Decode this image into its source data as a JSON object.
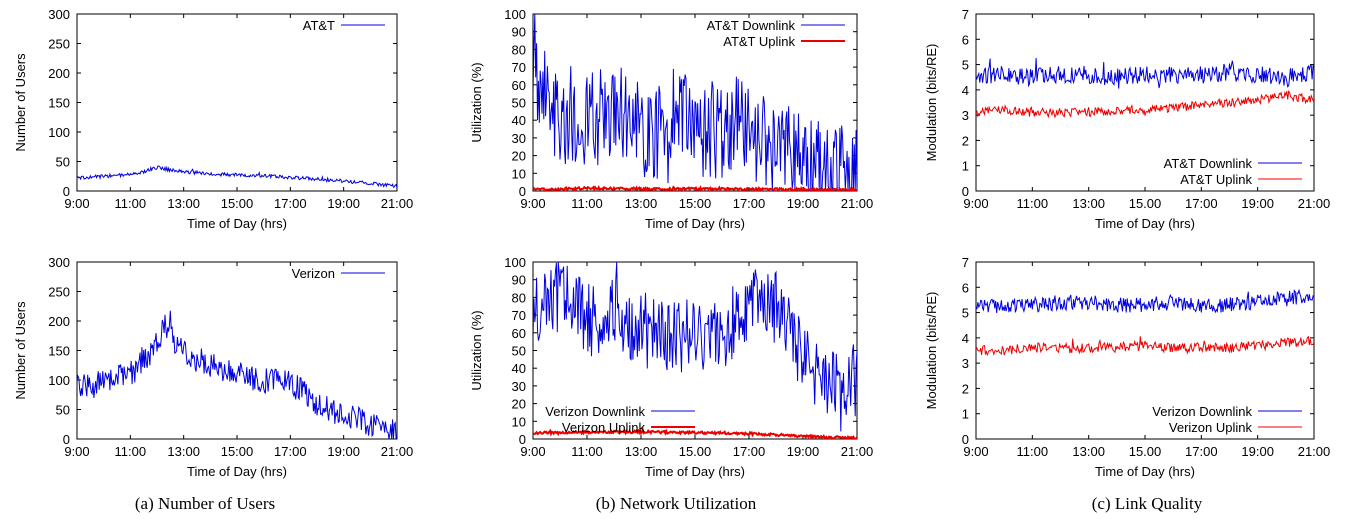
{
  "figure": {
    "captions": [
      "(a) Number of Users",
      "(b) Network Utilization",
      "(c) Link Quality"
    ]
  },
  "colors": {
    "blue": "#0000dd",
    "red": "#ee0000"
  },
  "chart_data": [
    {
      "id": "att_users",
      "type": "line",
      "xlabel": "Time of Day (hrs)",
      "ylabel": "Number of Users",
      "xlim": [
        9,
        21
      ],
      "ylim": [
        0,
        300
      ],
      "xticks": [
        "9:00",
        "11:00",
        "13:00",
        "15:00",
        "17:00",
        "19:00",
        "21:00"
      ],
      "yticks": [
        0,
        50,
        100,
        150,
        200,
        250,
        300
      ],
      "legend_position": "top-right",
      "series": [
        {
          "name": "AT&T",
          "color": "blue",
          "x": [
            9,
            10,
            11,
            11.5,
            12,
            12.5,
            13,
            14,
            15,
            16,
            17,
            18,
            19,
            20,
            21
          ],
          "y": [
            22,
            25,
            28,
            33,
            40,
            36,
            33,
            29,
            27,
            26,
            23,
            20,
            17,
            13,
            8
          ]
        }
      ]
    },
    {
      "id": "att_util",
      "type": "line",
      "xlabel": "Time of Day (hrs)",
      "ylabel": "Utilization (%)",
      "xlim": [
        9,
        21
      ],
      "ylim": [
        0,
        100
      ],
      "xticks": [
        "9:00",
        "11:00",
        "13:00",
        "15:00",
        "17:00",
        "19:00",
        "21:00"
      ],
      "yticks": [
        0,
        10,
        20,
        30,
        40,
        50,
        60,
        70,
        80,
        90,
        100
      ],
      "legend_position": "top-right",
      "series": [
        {
          "name": "AT&T Downlink",
          "color": "blue",
          "width": 1,
          "x": [
            9,
            9.3,
            9.5,
            9.8,
            10,
            10.5,
            11,
            11.5,
            12,
            12.5,
            13,
            13.5,
            14,
            14.5,
            15,
            15.5,
            16,
            16.5,
            17,
            17.5,
            18,
            18.5,
            19,
            19.5,
            20,
            20.5,
            21
          ],
          "y": [
            80,
            55,
            65,
            45,
            40,
            45,
            38,
            42,
            45,
            40,
            36,
            33,
            30,
            45,
            30,
            35,
            32,
            38,
            30,
            28,
            25,
            22,
            18,
            15,
            12,
            10,
            8
          ]
        },
        {
          "name": "AT&T Uplink",
          "color": "red",
          "width": 2,
          "x": [
            9,
            10,
            11,
            12,
            13,
            14,
            15,
            16,
            17,
            18,
            19,
            20,
            21
          ],
          "y": [
            1,
            1.2,
            1.5,
            1.3,
            1.2,
            1.1,
            1.2,
            1.1,
            1,
            0.9,
            0.8,
            0.6,
            0.5
          ]
        }
      ]
    },
    {
      "id": "att_mod",
      "type": "line",
      "xlabel": "Time of Day (hrs)",
      "ylabel": "Modulation (bits/RE)",
      "xlim": [
        9,
        21
      ],
      "ylim": [
        0,
        7
      ],
      "xticks": [
        "9:00",
        "11:00",
        "13:00",
        "15.00",
        "17:00",
        "19:00",
        "21:00"
      ],
      "yticks": [
        0,
        1,
        2,
        3,
        4,
        5,
        6,
        7
      ],
      "legend_position": "bottom-right",
      "series": [
        {
          "name": "AT&T Downlink",
          "color": "blue",
          "x": [
            9,
            10,
            11,
            12,
            13,
            14,
            15,
            16,
            17,
            18,
            19,
            20,
            21
          ],
          "y": [
            4.6,
            4.6,
            4.5,
            4.6,
            4.6,
            4.5,
            4.6,
            4.6,
            4.6,
            4.7,
            4.6,
            4.5,
            4.7
          ]
        },
        {
          "name": "AT&T Uplink",
          "color": "red",
          "x": [
            9,
            10,
            11,
            12,
            13,
            14,
            15,
            16,
            17,
            18,
            19,
            20,
            21
          ],
          "y": [
            3.1,
            3.2,
            3.1,
            3.1,
            3.1,
            3.2,
            3.2,
            3.3,
            3.4,
            3.5,
            3.6,
            3.8,
            3.6
          ]
        }
      ]
    },
    {
      "id": "vz_users",
      "type": "line",
      "xlabel": "Time of Day (hrs)",
      "ylabel": "Number of Users",
      "xlim": [
        9,
        21
      ],
      "ylim": [
        0,
        300
      ],
      "xticks": [
        "9:00",
        "11:00",
        "13:00",
        "15:00",
        "17:00",
        "19:00",
        "21:00"
      ],
      "yticks": [
        0,
        50,
        100,
        150,
        200,
        250,
        300
      ],
      "legend_position": "top-right",
      "series": [
        {
          "name": "Verizon",
          "color": "blue",
          "x": [
            9,
            10,
            11,
            11.5,
            12,
            12.3,
            12.5,
            13,
            14,
            15,
            16,
            17,
            17.5,
            18,
            19,
            20,
            21
          ],
          "y": [
            85,
            95,
            110,
            130,
            160,
            200,
            175,
            145,
            125,
            110,
            100,
            95,
            80,
            60,
            40,
            25,
            12
          ]
        }
      ]
    },
    {
      "id": "vz_util",
      "type": "line",
      "xlabel": "Time of Day (hrs)",
      "ylabel": "Utilization (%)",
      "xlim": [
        9,
        21
      ],
      "ylim": [
        0,
        100
      ],
      "xticks": [
        "9:00",
        "11:00",
        "13:00",
        "15.00",
        "17:00",
        "19:00",
        "21:00"
      ],
      "yticks": [
        0,
        10,
        20,
        30,
        40,
        50,
        60,
        70,
        80,
        90,
        100
      ],
      "legend_position": "bottom-left",
      "series": [
        {
          "name": "Verizon Downlink",
          "color": "blue",
          "width": 1,
          "x": [
            9,
            9.5,
            10,
            10.5,
            11,
            11.5,
            12,
            12.5,
            13,
            13.5,
            14,
            14.5,
            15,
            15.5,
            16,
            16.5,
            17,
            17.5,
            18,
            18.5,
            19,
            19.5,
            20,
            20.5,
            21
          ],
          "y": [
            70,
            82,
            78,
            75,
            70,
            55,
            70,
            65,
            60,
            62,
            60,
            58,
            60,
            55,
            62,
            65,
            80,
            85,
            75,
            60,
            45,
            35,
            30,
            25,
            35
          ]
        },
        {
          "name": "Verizon Uplink",
          "color": "red",
          "width": 2,
          "x": [
            9,
            10,
            11,
            12,
            13,
            14,
            15,
            16,
            17,
            18,
            19,
            20,
            21
          ],
          "y": [
            3.5,
            3.6,
            3.8,
            4,
            4,
            3.8,
            3.6,
            3.4,
            3,
            2.4,
            1.6,
            1,
            0.6
          ]
        }
      ]
    },
    {
      "id": "vz_mod",
      "type": "line",
      "xlabel": "Time of Day (hrs)",
      "ylabel": "Modulation (bits/RE)",
      "xlim": [
        9,
        21
      ],
      "ylim": [
        0,
        7
      ],
      "xticks": [
        "9:00",
        "11:00",
        "13:00",
        "15.00",
        "17:00",
        "19:00",
        "21:00"
      ],
      "yticks": [
        0,
        1,
        2,
        3,
        4,
        5,
        6,
        7
      ],
      "legend_position": "bottom-right",
      "series": [
        {
          "name": "Verizon Downlink",
          "color": "blue",
          "x": [
            9,
            10,
            11,
            12,
            13,
            14,
            15,
            16,
            17,
            18,
            19,
            20,
            21
          ],
          "y": [
            5.2,
            5.3,
            5.3,
            5.4,
            5.4,
            5.3,
            5.3,
            5.4,
            5.3,
            5.3,
            5.4,
            5.6,
            5.6
          ]
        },
        {
          "name": "Verizon Uplink",
          "color": "red",
          "x": [
            9,
            10,
            11,
            12,
            13,
            14,
            15,
            16,
            17,
            18,
            19,
            20,
            21
          ],
          "y": [
            3.5,
            3.5,
            3.6,
            3.6,
            3.6,
            3.6,
            3.7,
            3.6,
            3.6,
            3.6,
            3.7,
            3.8,
            3.9
          ]
        }
      ]
    }
  ]
}
